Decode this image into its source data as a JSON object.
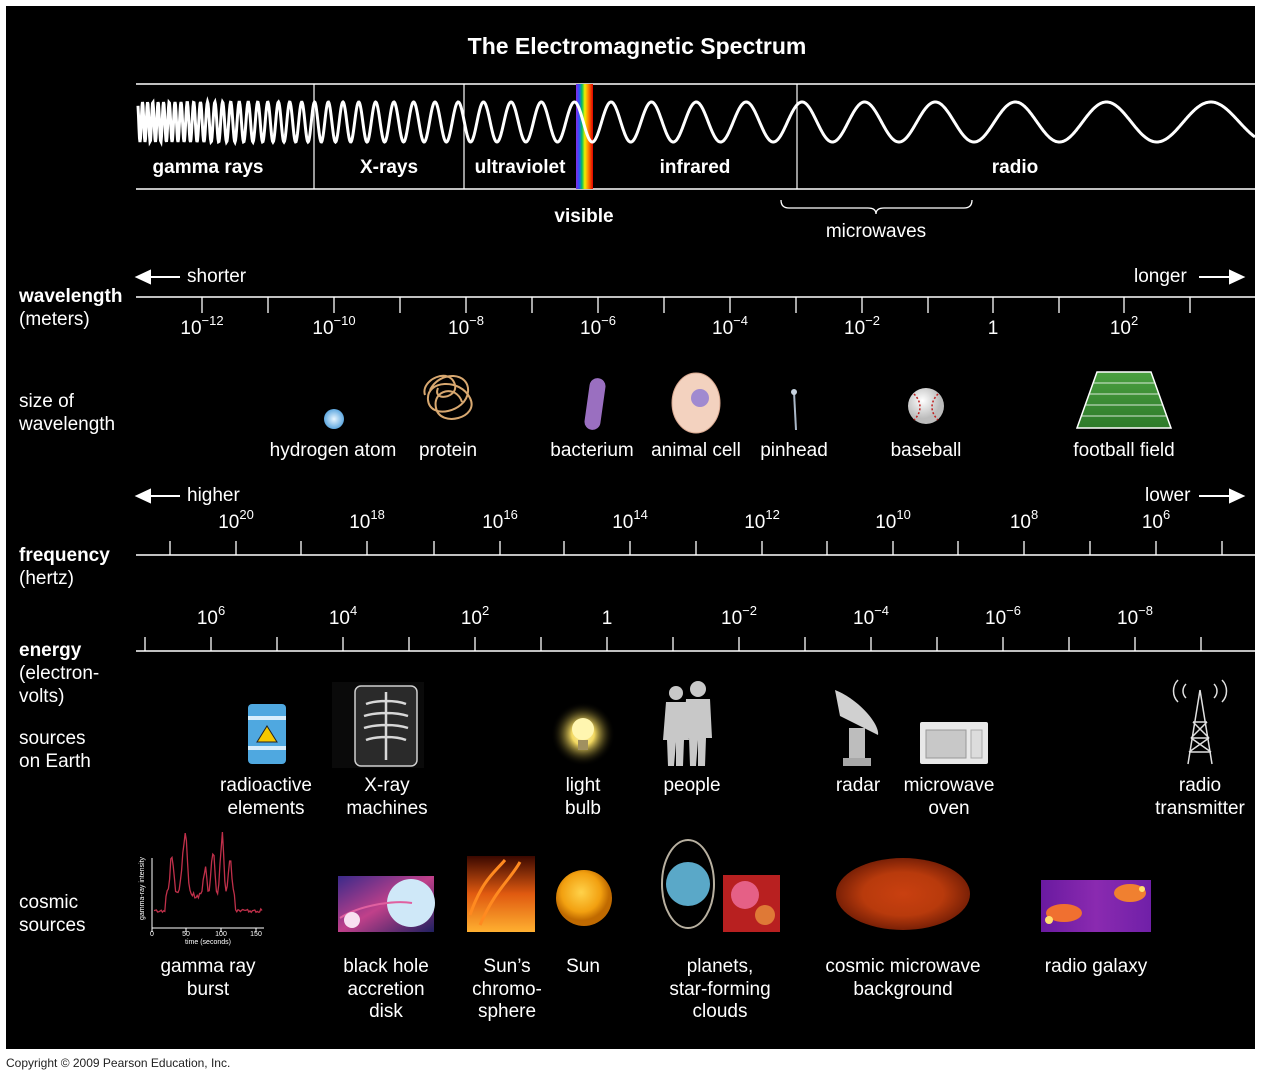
{
  "title": "The Electromagnetic Spectrum",
  "bands": [
    "gamma rays",
    "X-rays",
    "ultraviolet",
    "infrared",
    "radio"
  ],
  "visible_label": "visible",
  "microwaves_label": "microwaves",
  "wavelength": {
    "label_bold": "wavelength",
    "label_units": "(meters)",
    "left_label": "shorter",
    "right_label": "longer",
    "ticks": [
      {
        "base": "10",
        "exp": "−12"
      },
      {
        "base": "10",
        "exp": "−10"
      },
      {
        "base": "10",
        "exp": "−8"
      },
      {
        "base": "10",
        "exp": "−6"
      },
      {
        "base": "10",
        "exp": "−4"
      },
      {
        "base": "10",
        "exp": "−2"
      },
      {
        "base": "1",
        "exp": ""
      },
      {
        "base": "10",
        "exp": "2"
      }
    ]
  },
  "size": {
    "label_line1": "size of",
    "label_line2": "wavelength",
    "items": [
      "hydrogen atom",
      "protein",
      "bacterium",
      "animal cell",
      "pinhead",
      "baseball",
      "football field"
    ]
  },
  "frequency": {
    "label_bold": "frequency",
    "label_units": "(hertz)",
    "left_label": "higher",
    "right_label": "lower",
    "ticks": [
      {
        "base": "10",
        "exp": "20"
      },
      {
        "base": "10",
        "exp": "18"
      },
      {
        "base": "10",
        "exp": "16"
      },
      {
        "base": "10",
        "exp": "14"
      },
      {
        "base": "10",
        "exp": "12"
      },
      {
        "base": "10",
        "exp": "10"
      },
      {
        "base": "10",
        "exp": "8"
      },
      {
        "base": "10",
        "exp": "6"
      }
    ]
  },
  "energy": {
    "label_bold": "energy",
    "label_units_line1": "(electron-",
    "label_units_line2": "volts)",
    "ticks": [
      {
        "base": "10",
        "exp": "6"
      },
      {
        "base": "10",
        "exp": "4"
      },
      {
        "base": "10",
        "exp": "2"
      },
      {
        "base": "1",
        "exp": ""
      },
      {
        "base": "10",
        "exp": "−2"
      },
      {
        "base": "10",
        "exp": "−4"
      },
      {
        "base": "10",
        "exp": "−6"
      },
      {
        "base": "10",
        "exp": "−8"
      }
    ]
  },
  "earth_sources": {
    "label_line1": "sources",
    "label_line2": "on Earth",
    "items": [
      {
        "line1": "radioactive",
        "line2": "elements",
        "icon": "radioactive-barrel-icon"
      },
      {
        "line1": "X-ray",
        "line2": "machines",
        "icon": "xray-image-icon"
      },
      {
        "line1": "light",
        "line2": "bulb",
        "icon": "light-bulb-icon"
      },
      {
        "line1": "people",
        "line2": "",
        "icon": "people-icon"
      },
      {
        "line1": "radar",
        "line2": "",
        "icon": "radar-dish-icon"
      },
      {
        "line1": "microwave",
        "line2": "oven",
        "icon": "microwave-oven-icon"
      },
      {
        "line1": "radio",
        "line2": "transmitter",
        "icon": "radio-tower-icon"
      }
    ]
  },
  "cosmic_sources": {
    "label_line1": "cosmic",
    "label_line2": "sources",
    "items": [
      {
        "lines": [
          "gamma ray",
          "burst"
        ]
      },
      {
        "lines": [
          "black hole",
          "accretion",
          "disk"
        ]
      },
      {
        "lines": [
          "Sun’s",
          "chromo-",
          "sphere"
        ]
      },
      {
        "lines": [
          "Sun"
        ]
      },
      {
        "lines": [
          "planets,",
          "star-forming",
          "clouds"
        ]
      },
      {
        "lines": [
          "cosmic microwave",
          "background"
        ]
      },
      {
        "lines": [
          "radio galaxy"
        ]
      }
    ],
    "grb_plot": {
      "ylabel": "gamma-ray intensity",
      "xlabel": "time (seconds)",
      "xticks": [
        "0",
        "50",
        "100",
        "150"
      ]
    }
  },
  "copyright": "Copyright © 2009 Pearson Education, Inc.",
  "colors": {
    "background": "#000000",
    "text": "#ffffff",
    "grb_curve": "#c0304a"
  }
}
